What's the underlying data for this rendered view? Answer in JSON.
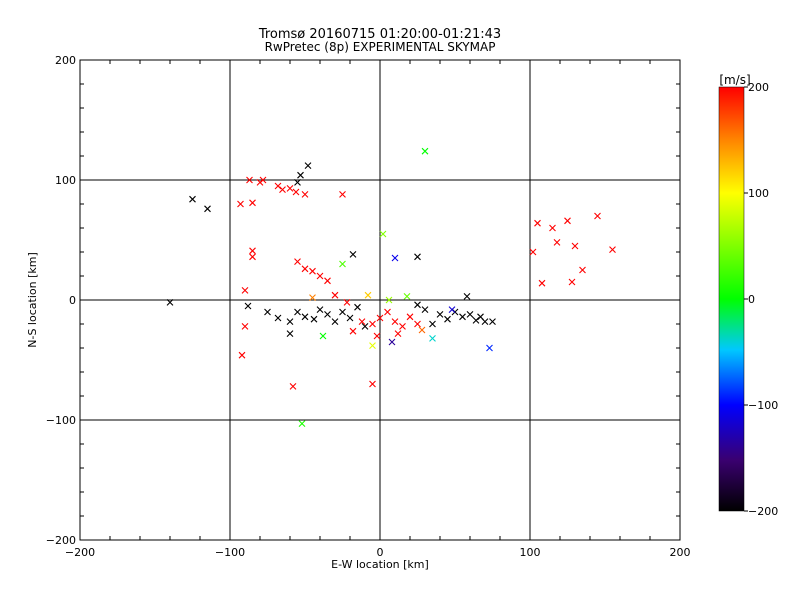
{
  "chart_data": {
    "type": "scatter",
    "title": "Tromsø 20160715 01:20:00-01:21:43",
    "subtitle": "RwPretec (8p) EXPERIMENTAL SKYMAP",
    "xlabel": "E-W location [km]",
    "ylabel": "N-S location [km]",
    "xlim": [
      -200,
      200
    ],
    "ylim": [
      -200,
      200
    ],
    "x_ticks": [
      -200,
      -100,
      0,
      100,
      200
    ],
    "y_ticks": [
      -200,
      -100,
      0,
      100,
      200
    ],
    "x_tick_labels": [
      "−200",
      "−100",
      "0",
      "100",
      "200"
    ],
    "y_tick_labels": [
      "−200",
      "−100",
      "0",
      "100",
      "200"
    ],
    "grid_lines": [
      -100,
      0,
      100
    ],
    "grid": true,
    "colorbar": {
      "label": "[m/s]",
      "range": [
        -200,
        200
      ],
      "ticks": [
        200,
        100,
        0,
        -100,
        -200
      ],
      "tick_labels": [
        "200",
        "100",
        "0",
        "−100",
        "−200"
      ],
      "colors": [
        "#000000",
        "#3a0070",
        "#0000ff",
        "#00c8ff",
        "#00ff00",
        "#ffff00",
        "#ff8000",
        "#ff0000"
      ]
    },
    "marker_legend": {
      "cross": "x marker",
      "dot": "small point"
    },
    "points": [
      {
        "x": -125,
        "y": 84,
        "v": -200,
        "m": "x"
      },
      {
        "x": -115,
        "y": 76,
        "v": -200,
        "m": "x"
      },
      {
        "x": -48,
        "y": 112,
        "v": -200,
        "m": "x"
      },
      {
        "x": -53,
        "y": 104,
        "v": -200,
        "m": "x"
      },
      {
        "x": -55,
        "y": 98,
        "v": -200,
        "m": "x"
      },
      {
        "x": -140,
        "y": -2,
        "v": -200,
        "m": "x"
      },
      {
        "x": -87,
        "y": 100,
        "v": 200,
        "m": "x"
      },
      {
        "x": -80,
        "y": 98,
        "v": 200,
        "m": "x"
      },
      {
        "x": -78,
        "y": 100,
        "v": 200,
        "m": "x"
      },
      {
        "x": -68,
        "y": 95,
        "v": 200,
        "m": "x"
      },
      {
        "x": -65,
        "y": 92,
        "v": 200,
        "m": "x"
      },
      {
        "x": -60,
        "y": 93,
        "v": 200,
        "m": "x"
      },
      {
        "x": -56,
        "y": 90,
        "v": 200,
        "m": "x"
      },
      {
        "x": -50,
        "y": 88,
        "v": 200,
        "m": "x"
      },
      {
        "x": -93,
        "y": 80,
        "v": 200,
        "m": "x"
      },
      {
        "x": -85,
        "y": 81,
        "v": 200,
        "m": "x"
      },
      {
        "x": -85,
        "y": 41,
        "v": 200,
        "m": "x"
      },
      {
        "x": -85,
        "y": 36,
        "v": 200,
        "m": "x"
      },
      {
        "x": -90,
        "y": 8,
        "v": 200,
        "m": "x"
      },
      {
        "x": -90,
        "y": -22,
        "v": 200,
        "m": "x"
      },
      {
        "x": -92,
        "y": -46,
        "v": 200,
        "m": "x"
      },
      {
        "x": -58,
        "y": -72,
        "v": 200,
        "m": "x"
      },
      {
        "x": -5,
        "y": -70,
        "v": 200,
        "m": "x"
      },
      {
        "x": -25,
        "y": 88,
        "v": 200,
        "m": "x"
      },
      {
        "x": -55,
        "y": 32,
        "v": 200,
        "m": "x"
      },
      {
        "x": -50,
        "y": 26,
        "v": 200,
        "m": "x"
      },
      {
        "x": -45,
        "y": 24,
        "v": 200,
        "m": "x"
      },
      {
        "x": -40,
        "y": 20,
        "v": 200,
        "m": "x"
      },
      {
        "x": -35,
        "y": 16,
        "v": 200,
        "m": "x"
      },
      {
        "x": 30,
        "y": 124,
        "v": 0,
        "m": "x"
      },
      {
        "x": -52,
        "y": -103,
        "v": 10,
        "m": "x"
      },
      {
        "x": -18,
        "y": 38,
        "v": -200,
        "m": "x"
      },
      {
        "x": 10,
        "y": 35,
        "v": -110,
        "m": "x"
      },
      {
        "x": 25,
        "y": 36,
        "v": -200,
        "m": "x"
      },
      {
        "x": 58,
        "y": 3,
        "v": -200,
        "m": "x"
      },
      {
        "x": 73,
        "y": -40,
        "v": -90,
        "m": "x"
      },
      {
        "x": 105,
        "y": 64,
        "v": 200,
        "m": "x"
      },
      {
        "x": 115,
        "y": 60,
        "v": 200,
        "m": "x"
      },
      {
        "x": 118,
        "y": 48,
        "v": 200,
        "m": "x"
      },
      {
        "x": 125,
        "y": 66,
        "v": 200,
        "m": "x"
      },
      {
        "x": 130,
        "y": 45,
        "v": 200,
        "m": "x"
      },
      {
        "x": 102,
        "y": 40,
        "v": 200,
        "m": "x"
      },
      {
        "x": 108,
        "y": 14,
        "v": 200,
        "m": "x"
      },
      {
        "x": 128,
        "y": 15,
        "v": 200,
        "m": "x"
      },
      {
        "x": 135,
        "y": 25,
        "v": 200,
        "m": "x"
      },
      {
        "x": 145,
        "y": 70,
        "v": 200,
        "m": "x"
      },
      {
        "x": 155,
        "y": 42,
        "v": 200,
        "m": "x"
      },
      {
        "x": -75,
        "y": -10,
        "v": -200,
        "m": "x"
      },
      {
        "x": -68,
        "y": -15,
        "v": -200,
        "m": "x"
      },
      {
        "x": -60,
        "y": -18,
        "v": -200,
        "m": "x"
      },
      {
        "x": -55,
        "y": -10,
        "v": -200,
        "m": "x"
      },
      {
        "x": -50,
        "y": -14,
        "v": -200,
        "m": "x"
      },
      {
        "x": -44,
        "y": -16,
        "v": -200,
        "m": "x"
      },
      {
        "x": -40,
        "y": -8,
        "v": -200,
        "m": "x"
      },
      {
        "x": -35,
        "y": -12,
        "v": -200,
        "m": "x"
      },
      {
        "x": -30,
        "y": -18,
        "v": -200,
        "m": "x"
      },
      {
        "x": -25,
        "y": -10,
        "v": -200,
        "m": "x"
      },
      {
        "x": -20,
        "y": -15,
        "v": -200,
        "m": "x"
      },
      {
        "x": -15,
        "y": -6,
        "v": -200,
        "m": "x"
      },
      {
        "x": -10,
        "y": -22,
        "v": -200,
        "m": "x"
      },
      {
        "x": -60,
        "y": -28,
        "v": -200,
        "m": "x"
      },
      {
        "x": -88,
        "y": -5,
        "v": -200,
        "m": "x"
      },
      {
        "x": 40,
        "y": -12,
        "v": -200,
        "m": "x"
      },
      {
        "x": 45,
        "y": -16,
        "v": -200,
        "m": "x"
      },
      {
        "x": 50,
        "y": -10,
        "v": -200,
        "m": "x"
      },
      {
        "x": 55,
        "y": -14,
        "v": -200,
        "m": "x"
      },
      {
        "x": 60,
        "y": -12,
        "v": -200,
        "m": "x"
      },
      {
        "x": 64,
        "y": -17,
        "v": -200,
        "m": "x"
      },
      {
        "x": 67,
        "y": -14,
        "v": -200,
        "m": "x"
      },
      {
        "x": 70,
        "y": -18,
        "v": -200,
        "m": "x"
      },
      {
        "x": 75,
        "y": -18,
        "v": -200,
        "m": "x"
      },
      {
        "x": 30,
        "y": -8,
        "v": -200,
        "m": "x"
      },
      {
        "x": 35,
        "y": -20,
        "v": -200,
        "m": "x"
      },
      {
        "x": 25,
        "y": -4,
        "v": -200,
        "m": "x"
      },
      {
        "x": -30,
        "y": 4,
        "v": 200,
        "m": "x"
      },
      {
        "x": -22,
        "y": -2,
        "v": 200,
        "m": "x"
      },
      {
        "x": -12,
        "y": -18,
        "v": 200,
        "m": "x"
      },
      {
        "x": -5,
        "y": -20,
        "v": 200,
        "m": "x"
      },
      {
        "x": 0,
        "y": -15,
        "v": 200,
        "m": "x"
      },
      {
        "x": 5,
        "y": -10,
        "v": 200,
        "m": "x"
      },
      {
        "x": 10,
        "y": -18,
        "v": 200,
        "m": "x"
      },
      {
        "x": 15,
        "y": -22,
        "v": 200,
        "m": "x"
      },
      {
        "x": 20,
        "y": -14,
        "v": 200,
        "m": "x"
      },
      {
        "x": 25,
        "y": -20,
        "v": 200,
        "m": "x"
      },
      {
        "x": -2,
        "y": -30,
        "v": 200,
        "m": "x"
      },
      {
        "x": 12,
        "y": -28,
        "v": 200,
        "m": "x"
      },
      {
        "x": -18,
        "y": -26,
        "v": 200,
        "m": "x"
      },
      {
        "x": -45,
        "y": 2,
        "v": 150,
        "m": "x"
      },
      {
        "x": -8,
        "y": 4,
        "v": 120,
        "m": "x"
      },
      {
        "x": 6,
        "y": 0,
        "v": 60,
        "m": "x"
      },
      {
        "x": 18,
        "y": 3,
        "v": 40,
        "m": "x"
      },
      {
        "x": -25,
        "y": 30,
        "v": 30,
        "m": "x"
      },
      {
        "x": 2,
        "y": 55,
        "v": 50,
        "m": "x"
      },
      {
        "x": 35,
        "y": -32,
        "v": -40,
        "m": "x"
      },
      {
        "x": -5,
        "y": -38,
        "v": 90,
        "m": "x"
      },
      {
        "x": 28,
        "y": -25,
        "v": 160,
        "m": "x"
      },
      {
        "x": 8,
        "y": -35,
        "v": -150,
        "m": "x"
      },
      {
        "x": 48,
        "y": -8,
        "v": -120,
        "m": "x"
      },
      {
        "x": -38,
        "y": -30,
        "v": 0,
        "m": "x"
      }
    ]
  }
}
